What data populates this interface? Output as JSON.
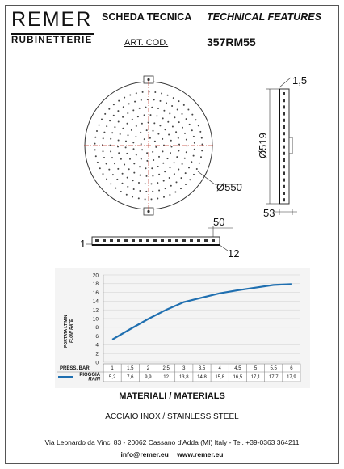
{
  "header": {
    "brand": "REMER",
    "brand_sub": "RUBINETTERIE",
    "scheda": "SCHEDA TECNICA",
    "technical": "TECHNICAL FEATURES",
    "art_label": "ART. COD.",
    "art_code": "357RM55"
  },
  "drawing": {
    "dim_diameter": "Ø550",
    "dim_side_diameter": "Ø519",
    "dim_thickness": "1,5",
    "dim_side_depth": "53",
    "dim_bottom_50": "50",
    "dim_bottom_1": "1",
    "dim_bottom_12": "12"
  },
  "chart_data": {
    "type": "line",
    "ylabel": "PORTATA LT/MIN",
    "ylabel_en": "FLOW RATE",
    "row_header": "PRESS. BAR",
    "series_label_it": "PIOGGIA",
    "series_label_en": "RAIN",
    "ylim": [
      0,
      20
    ],
    "yticks": [
      0,
      2,
      4,
      6,
      8,
      10,
      12,
      14,
      16,
      18,
      20
    ],
    "x_labels": [
      "1",
      "1,5",
      "2",
      "2,5",
      "3",
      "3,5",
      "4",
      "4,5",
      "5",
      "5,5",
      "6"
    ],
    "value_labels": [
      "5,2",
      "7,6",
      "9,9",
      "12",
      "13,8",
      "14,8",
      "15,8",
      "16,5",
      "17,1",
      "17,7",
      "17,9"
    ],
    "x": [
      1,
      1.5,
      2,
      2.5,
      3,
      3.5,
      4,
      4.5,
      5,
      5.5,
      6
    ],
    "values": [
      5.2,
      7.6,
      9.9,
      12,
      13.8,
      14.8,
      15.8,
      16.5,
      17.1,
      17.7,
      17.9
    ],
    "line_color": "#1f6fb0",
    "grid": true
  },
  "materials": {
    "title": "MATERIALI / MATERIALS",
    "value": "ACCIAIO INOX / STAINLESS STEEL"
  },
  "footer": {
    "address": "Via Leonardo da Vinci 83 - 20062 Cassano d'Adda (MI) Italy - Tel. +39-0363 364211",
    "email": "info@remer.eu",
    "website": "www.remer.eu"
  }
}
